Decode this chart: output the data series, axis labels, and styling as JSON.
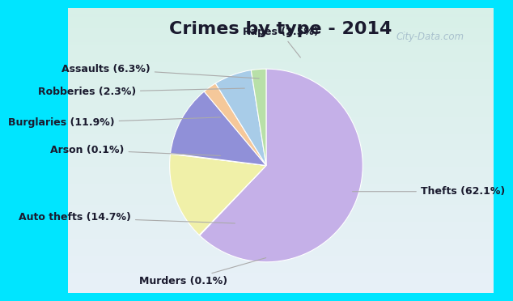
{
  "title": "Crimes by type - 2014",
  "slices": [
    {
      "label": "Thefts (62.1%)",
      "value": 62.1,
      "color": "#c5b0e8"
    },
    {
      "label": "Murders (0.1%)",
      "value": 0.1,
      "color": "#c5e8c5"
    },
    {
      "label": "Auto thefts (14.7%)",
      "value": 14.7,
      "color": "#f0f0a8"
    },
    {
      "label": "Arson (0.1%)",
      "value": 0.1,
      "color": "#f8c8c0"
    },
    {
      "label": "Burglaries (11.9%)",
      "value": 11.9,
      "color": "#9090d8"
    },
    {
      "label": "Robberies (2.3%)",
      "value": 2.3,
      "color": "#f5c89a"
    },
    {
      "label": "Assaults (6.3%)",
      "value": 6.3,
      "color": "#a8cce8"
    },
    {
      "label": "Rapes (2.5%)",
      "value": 2.5,
      "color": "#b8e0a8"
    }
  ],
  "startangle": 90,
  "background_border": "#00e5ff",
  "background_inner_tl": "#d8f0e8",
  "background_inner_br": "#e8f0f8",
  "title_fontsize": 16,
  "title_color": "#1a1a2e",
  "label_fontsize": 9,
  "watermark": "City-Data.com",
  "watermark_color": "#a0b8c8"
}
